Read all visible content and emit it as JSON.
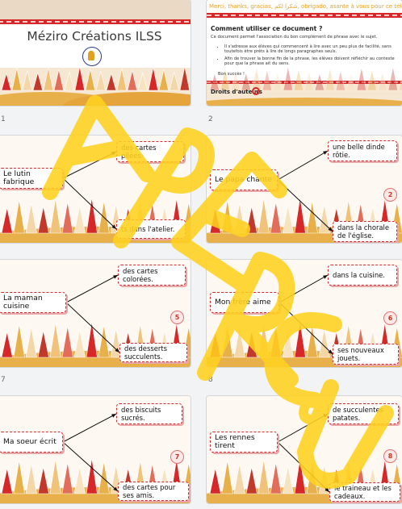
{
  "slides": [
    {
      "number": "1",
      "title": "Méziro Créations ILSS"
    },
    {
      "number": "2",
      "top_line": "Merci, thanks, gracias, شكرا لكم, obrigado, asante à vous pour ce téléchargement.",
      "heading": "Comment utiliser ce document ?",
      "intro": "Ce document permet l'association du bon complément de phrase avec le sujet.",
      "bullets": [
        "Il s'adresse aux élèves qui commencent à lire avec un peu plus de facilité, sans toutefois être prêts à lire de longs paragraphes seuls.",
        "Afin de trouver la bonne fin de la phrase, les élèves doivent réfléchir au contexte pour que la phrase ait du sens."
      ],
      "signoff": "Bon succès !",
      "rights": "Droits d'auteurs"
    },
    {
      "number": "",
      "subject": "Le lutin fabrique",
      "option_top": "des cartes pilées.",
      "option_bottom": "ts dans l'atelier."
    },
    {
      "number": "",
      "subject": "Le papa chante",
      "option_top": "une belle dinde rôtie.",
      "option_bottom": "dans la chorale de l'église.",
      "badge": "2"
    },
    {
      "number": "7",
      "subject": "La maman cuisine",
      "option_top": "des cartes colorées.",
      "option_bottom": "des desserts succulents.",
      "badge": "5"
    },
    {
      "number": "8",
      "subject": "Mon frère aime",
      "option_top": "dans la cuisine.",
      "option_bottom": "ses nouveaux jouets.",
      "badge": "6"
    },
    {
      "number": "",
      "subject": "Ma soeur écrit",
      "option_top": "des biscuits sucrés.",
      "option_bottom": "des cartes pour ses amis.",
      "badge": "7"
    },
    {
      "number": "",
      "subject": "Les rennes tirent",
      "option_top": "de succulentes patates.",
      "option_bottom": "le traineau et les cadeaux.",
      "badge": "8"
    }
  ],
  "watermark": "APERÇU",
  "colors": {
    "accent_red": "#d62828",
    "watermark": "#ffd21f",
    "gold": "#e8b04a"
  }
}
